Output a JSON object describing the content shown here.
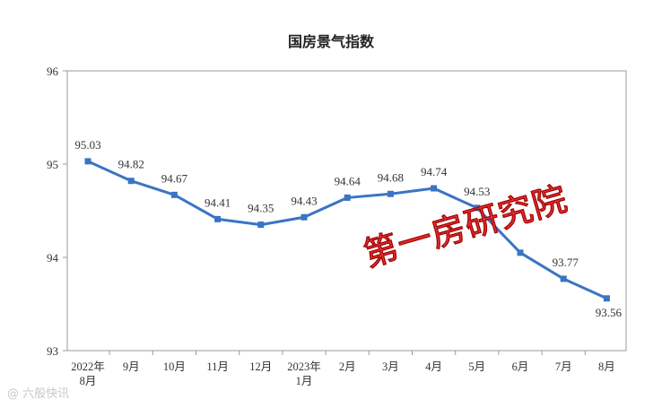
{
  "chart_data": {
    "type": "line",
    "title": "国房景气指数",
    "categories": [
      "2022年\n8月",
      "9月",
      "10月",
      "11月",
      "12月",
      "2023年\n1月",
      "2月",
      "3月",
      "4月",
      "5月",
      "6月",
      "7月",
      "8月"
    ],
    "series": [
      {
        "values": [
          95.03,
          94.82,
          94.67,
          94.41,
          94.35,
          94.43,
          94.64,
          94.68,
          94.74,
          94.53,
          94.05,
          93.77,
          93.56
        ]
      }
    ],
    "data_labels": [
      "95.03",
      "94.82",
      "94.67",
      "94.41",
      "94.35",
      "94.43",
      "94.64",
      "94.68",
      "94.74",
      "94.53",
      "",
      "93.77",
      "93.56"
    ],
    "ylim": [
      93,
      96
    ],
    "yticks": [
      93,
      94,
      95,
      96
    ],
    "grid": false,
    "line_color": "#3a74c4"
  },
  "watermark": "第一房研究院",
  "source_mark": "@ 六般快讯"
}
